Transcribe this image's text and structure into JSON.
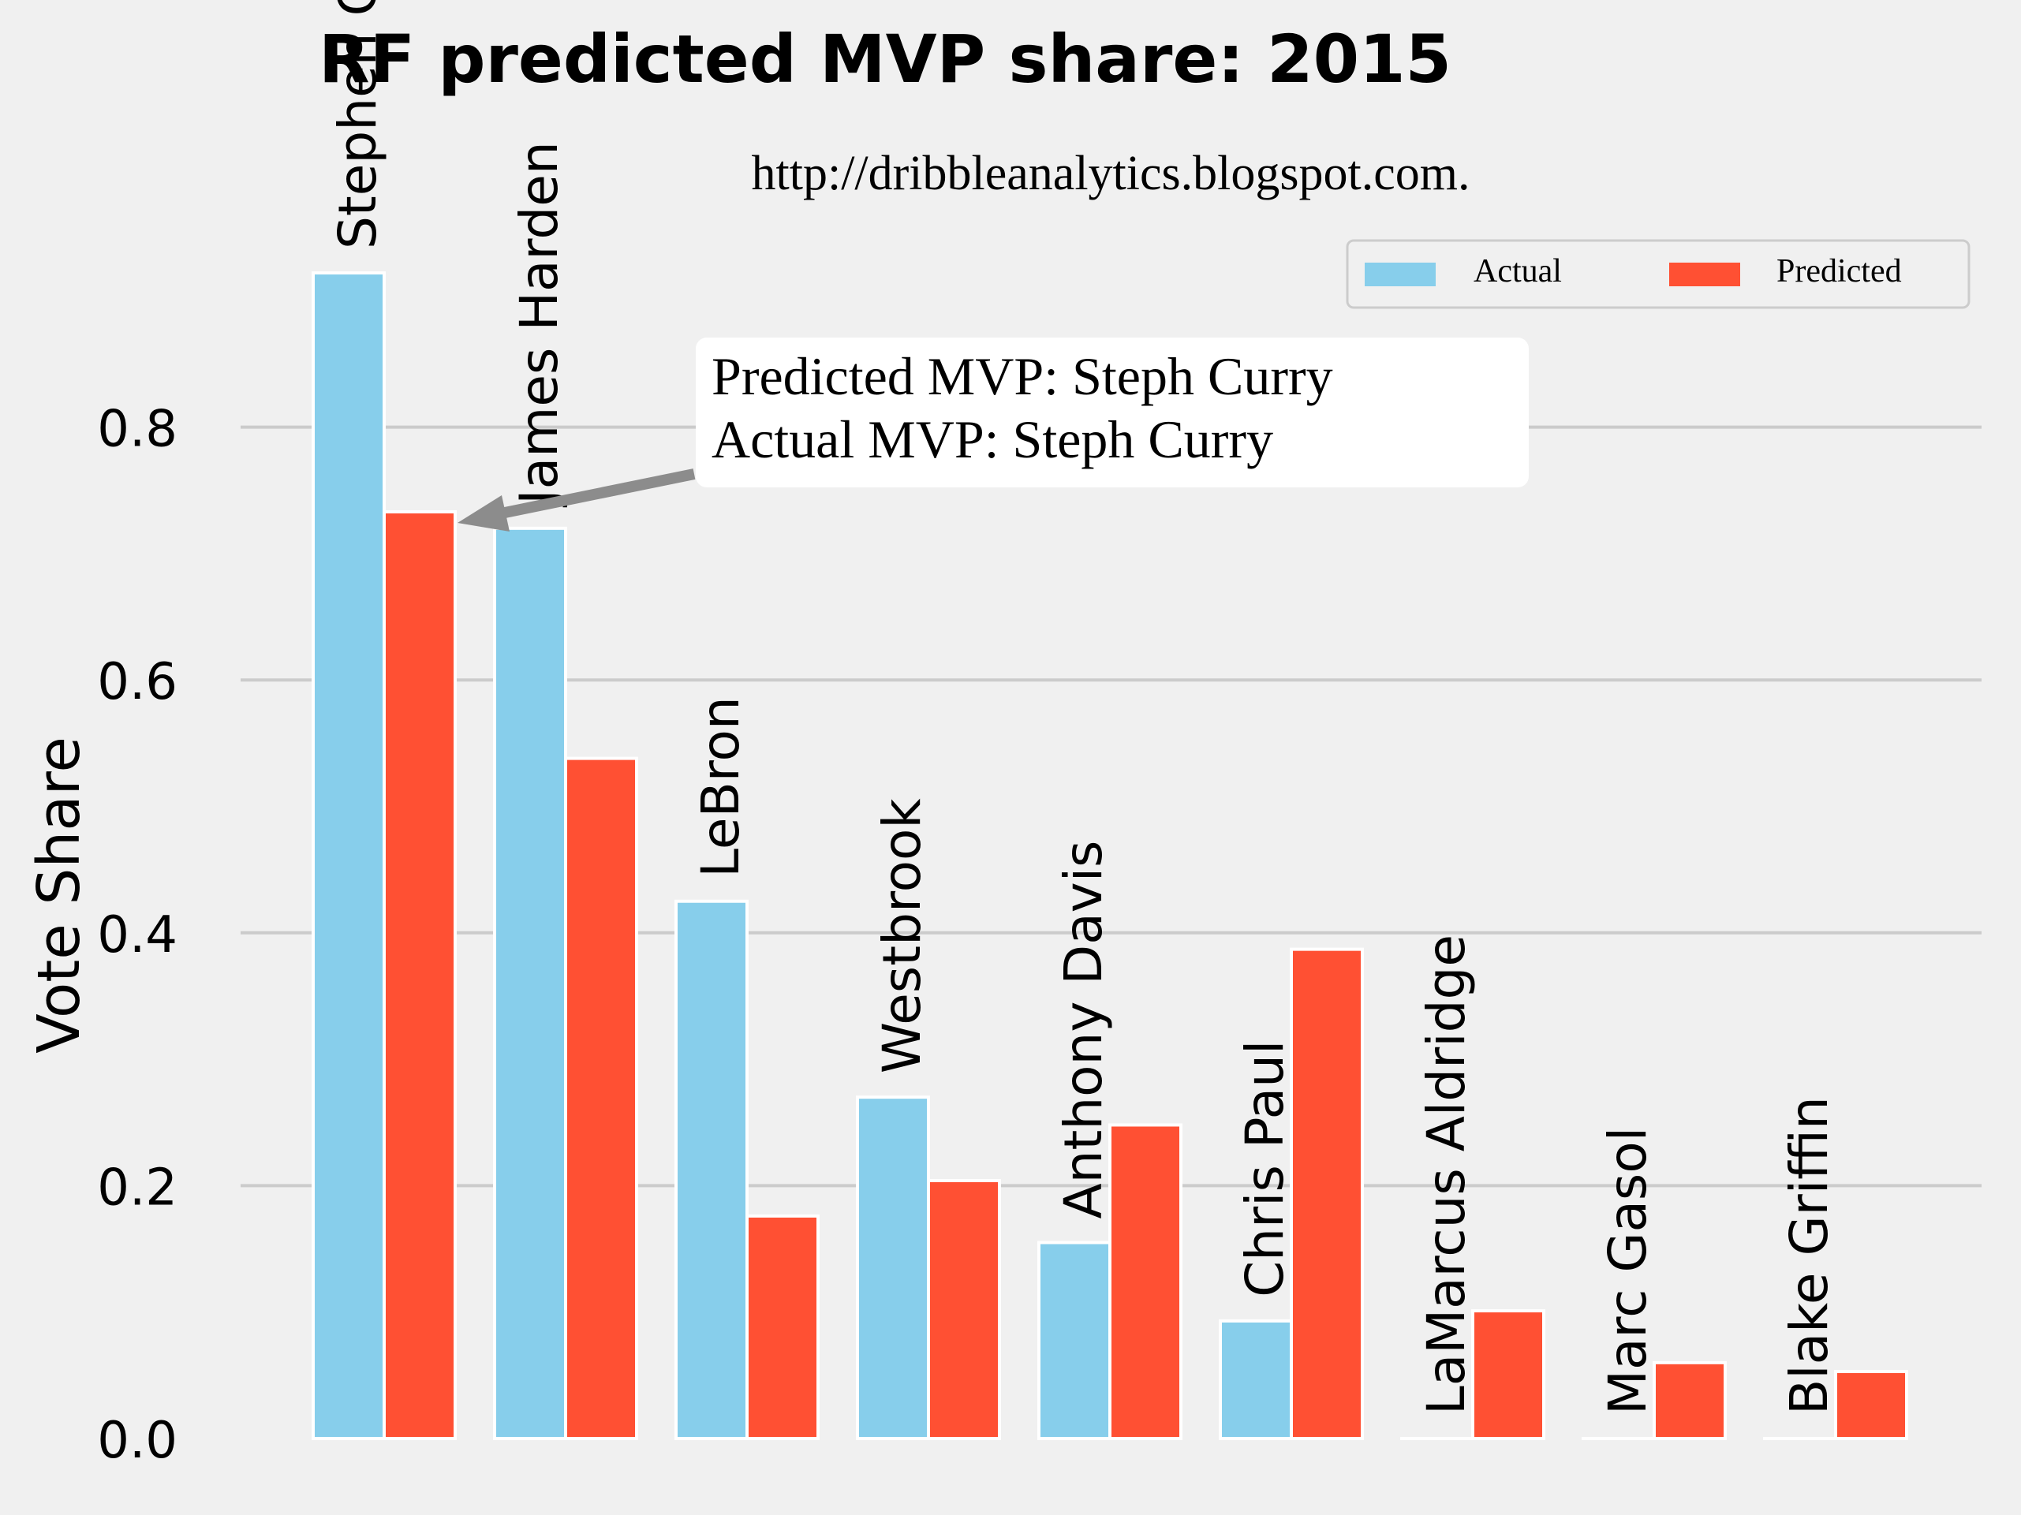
{
  "chart_data": {
    "type": "bar",
    "title": "RF predicted MVP share: 2015",
    "subtitle": "http://dribbleanalytics.blogspot.com.",
    "xlabel": "",
    "ylabel": "Vote Share",
    "ylim": [
      0,
      0.92
    ],
    "yticks": [
      "0.0",
      "0.2",
      "0.4",
      "0.6",
      "0.8"
    ],
    "grid": "horizontal",
    "legend_position": "top-right",
    "categories": [
      "Stephen Curry",
      "James Harden",
      "LeBron",
      "Westbrook",
      "Anthony Davis",
      "Chris Paul",
      "LaMarcus Aldridge",
      "Marc Gasol",
      "Blake Griffin"
    ],
    "series": [
      {
        "name": "Actual",
        "color": "#87ceeb",
        "values": [
          0.922,
          0.72,
          0.425,
          0.27,
          0.155,
          0.093,
          0.0,
          0.0,
          0.0
        ]
      },
      {
        "name": "Predicted",
        "color": "#ff5033",
        "values": [
          0.733,
          0.538,
          0.176,
          0.204,
          0.248,
          0.387,
          0.101,
          0.06,
          0.053
        ]
      }
    ],
    "annotation": {
      "lines": [
        "Predicted MVP: Steph Curry",
        "Actual MVP: Steph Curry"
      ]
    }
  }
}
